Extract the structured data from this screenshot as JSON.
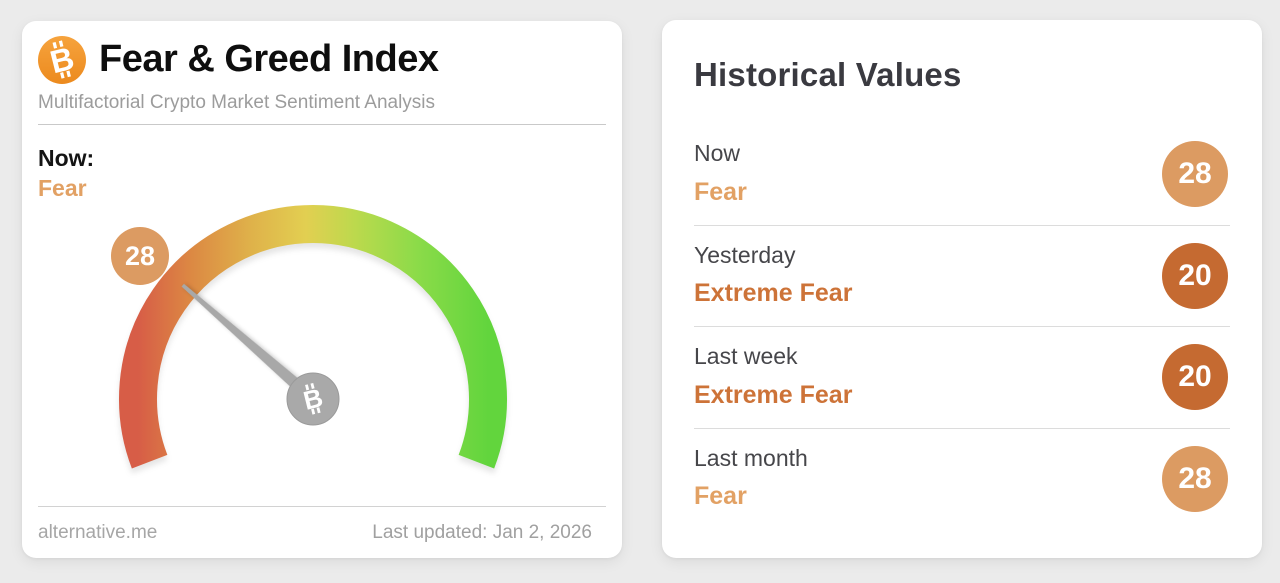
{
  "page": {
    "background_color": "#ebebeb"
  },
  "gauge_card": {
    "title": "Fear & Greed Index",
    "subtitle": "Multifactorial Crypto Market Sentiment Analysis",
    "now_label": "Now:",
    "now_value_text": "Fear",
    "now_value_color": "#e2a164",
    "attribution": "alternative.me",
    "last_updated": "Last updated: Jan 2, 2026"
  },
  "chart_data": {
    "type": "gauge",
    "title": "Fear & Greed Index",
    "value": 28,
    "min": 0,
    "max": 100,
    "classification": "Fear",
    "arc_span_degrees": 222,
    "badge_color": "#dc9b62",
    "needle_color": "#a8a8a8",
    "hub_color": "#a9a9a9",
    "gradient_stops": [
      {
        "offset": "0%",
        "color": "#d75d47"
      },
      {
        "offset": "15%",
        "color": "#dc8843"
      },
      {
        "offset": "32%",
        "color": "#dfb14a"
      },
      {
        "offset": "48%",
        "color": "#e2cf51"
      },
      {
        "offset": "62%",
        "color": "#bcd94d"
      },
      {
        "offset": "80%",
        "color": "#8bdb49"
      },
      {
        "offset": "100%",
        "color": "#62d53d"
      }
    ]
  },
  "historical": {
    "title": "Historical Values",
    "rows": [
      {
        "label": "Now",
        "classification": "Fear",
        "value": "28",
        "badge_color": "#dc9b62",
        "text_color": "#e2a164"
      },
      {
        "label": "Yesterday",
        "classification": "Extreme Fear",
        "value": "20",
        "badge_color": "#c56a31",
        "text_color": "#cd7338"
      },
      {
        "label": "Last week",
        "classification": "Extreme Fear",
        "value": "20",
        "badge_color": "#c56a31",
        "text_color": "#cd7338"
      },
      {
        "label": "Last month",
        "classification": "Fear",
        "value": "28",
        "badge_color": "#dc9b62",
        "text_color": "#e2a164"
      }
    ]
  }
}
